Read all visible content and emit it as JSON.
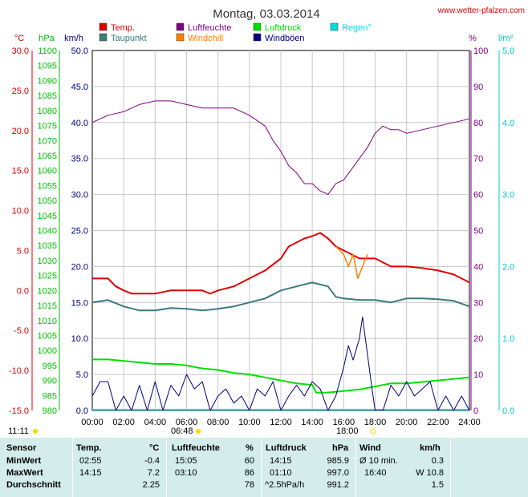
{
  "header": {
    "title": "Montag, 03.03.2014",
    "site": "www.wetter-pfalzen.com"
  },
  "legend": [
    {
      "label": "Temp.",
      "color": "#e00000"
    },
    {
      "label": "Taupunkt",
      "color": "#3a7b7b"
    },
    {
      "label": "Luftfeuchte",
      "color": "#800080"
    },
    {
      "label": "Windchill",
      "color": "#ff8000"
    },
    {
      "label": "Luftdruck",
      "color": "#00e000"
    },
    {
      "label": "Windböen",
      "color": "#000080"
    },
    {
      "label": "Regen°",
      "color": "#00e0e0"
    }
  ],
  "axes": {
    "temp": {
      "unit": "°C",
      "color": "#e00000",
      "ticks": [
        "30.0",
        "25.0",
        "20.0",
        "15.0",
        "10.0",
        "5.0",
        "0.0",
        "-5.0",
        "-10.0",
        "-15.0"
      ]
    },
    "pressure": {
      "unit": "hPa",
      "color": "#00c000",
      "ticks": [
        "1100",
        "1095",
        "1090",
        "1085",
        "1080",
        "1075",
        "1070",
        "1065",
        "1060",
        "1055",
        "1050",
        "1045",
        "1040",
        "1035",
        "1030",
        "1025",
        "1020",
        "1015",
        "1010",
        "1005",
        "1000",
        "995",
        "990",
        "985",
        "980"
      ]
    },
    "wind": {
      "unit": "km/h",
      "color": "#000080",
      "ticks": [
        "50.0",
        "45.0",
        "40.0",
        "35.0",
        "30.0",
        "25.0",
        "20.0",
        "15.0",
        "10.0",
        "5.0",
        "0.0"
      ]
    },
    "humidity": {
      "unit": "%",
      "color": "#800080",
      "ticks": [
        "100",
        "90",
        "80",
        "70",
        "60",
        "50",
        "40",
        "30",
        "20",
        "10",
        "0"
      ]
    },
    "rain": {
      "unit": "l/m²",
      "color": "#00c8c8",
      "ticks": [
        "5.0",
        "4.0",
        "3.0",
        "2.0",
        "1.0",
        "0.0"
      ]
    },
    "time": {
      "ticks": [
        "00:00",
        "02:00",
        "04:00",
        "06:00",
        "08:00",
        "10:00",
        "12:00",
        "14:00",
        "16:00",
        "18:00",
        "20:00",
        "22:00",
        "24:00"
      ]
    }
  },
  "sun": {
    "current": "11:11",
    "sunrise": "06:48",
    "sunset": "18:00"
  },
  "chart_data": {
    "type": "line",
    "x_unit": "hours",
    "xlim": [
      0,
      24
    ],
    "series": [
      {
        "name": "Temp.",
        "axis": "°C",
        "color": "#e00000",
        "x": [
          0,
          1,
          1.5,
          2,
          2.5,
          3,
          4,
          5,
          6,
          7,
          7.5,
          8,
          9,
          10,
          11,
          12,
          12.5,
          13,
          13.5,
          14,
          14.5,
          15,
          15.5,
          16,
          16.5,
          17,
          18,
          19,
          20,
          21,
          22,
          23,
          24
        ],
        "y": [
          1.5,
          1.5,
          0.5,
          0,
          -0.4,
          -0.4,
          -0.4,
          0,
          0,
          0,
          -0.4,
          0,
          0.5,
          1.5,
          2.5,
          4,
          5.5,
          6,
          6.5,
          6.8,
          7.2,
          6.5,
          5.5,
          5,
          4.5,
          4,
          4,
          3,
          3,
          2.8,
          2.5,
          2,
          1
        ]
      },
      {
        "name": "Taupunkt",
        "axis": "°C",
        "color": "#3a7b7b",
        "x": [
          0,
          1,
          2,
          3,
          4,
          5,
          6,
          7,
          8,
          9,
          10,
          11,
          12,
          13,
          14,
          15,
          15.5,
          16,
          17,
          18,
          19,
          20,
          21,
          22,
          23,
          24
        ],
        "y": [
          -1.5,
          -1.2,
          -2,
          -2.5,
          -2.5,
          -2.2,
          -2.3,
          -2.5,
          -2.3,
          -2,
          -1.5,
          -1,
          0,
          0.5,
          1,
          0.5,
          -0.8,
          -1,
          -1.2,
          -1.2,
          -1.5,
          -1,
          -1,
          -1.1,
          -1.3,
          -2
        ]
      },
      {
        "name": "Windchill",
        "axis": "°C",
        "color": "#ff8000",
        "x": [
          15.5,
          16,
          16.3,
          16.6,
          16.9,
          17.2,
          17.5
        ],
        "y": [
          5.5,
          4.5,
          3,
          4.5,
          1.5,
          3,
          4.5
        ]
      },
      {
        "name": "Luftfeuchte",
        "axis": "%",
        "color": "#800080",
        "x": [
          0,
          1,
          2,
          3,
          4,
          5,
          6,
          7,
          8,
          9,
          10,
          11,
          11.5,
          12,
          12.5,
          13,
          13.5,
          14,
          14.5,
          15,
          15.5,
          16,
          16.5,
          17,
          17.5,
          18,
          18.5,
          19,
          19.5,
          20,
          21,
          22,
          23,
          24
        ],
        "y": [
          80,
          82,
          83,
          85,
          86,
          86,
          85,
          84,
          84,
          84,
          82,
          79,
          75,
          72,
          68,
          66,
          63,
          63,
          61,
          60,
          63,
          64,
          67,
          70,
          73,
          77,
          79,
          78,
          78,
          77,
          78,
          79,
          80,
          81
        ]
      },
      {
        "name": "Luftdruck",
        "axis": "hPa",
        "color": "#00e000",
        "x": [
          0,
          1,
          2,
          3,
          4,
          5,
          6,
          7,
          8,
          9,
          10,
          11,
          12,
          13,
          14,
          14.25,
          15,
          16,
          17,
          18,
          19,
          20,
          21,
          22,
          23,
          24
        ],
        "y": [
          997,
          997,
          996.5,
          996,
          995.5,
          995.5,
          995,
          994,
          993.5,
          992.5,
          992,
          991,
          990,
          989,
          988.5,
          985.9,
          986,
          986.5,
          987,
          988,
          989,
          989,
          989.5,
          990,
          990.5,
          991
        ]
      },
      {
        "name": "Windböen",
        "axis": "km/h",
        "color": "#000080",
        "x": [
          0,
          0.5,
          1,
          1.5,
          2,
          2.5,
          3,
          3.5,
          4,
          4.5,
          5,
          5.5,
          6,
          6.5,
          7,
          7.5,
          8,
          8.5,
          9,
          9.5,
          10,
          10.5,
          11,
          11.5,
          12,
          12.5,
          13,
          13.5,
          14,
          14.5,
          15,
          15.5,
          16,
          16.3,
          16.6,
          17,
          17.2,
          17.5,
          17.8,
          18,
          18.5,
          19,
          19.5,
          20,
          20.5,
          21,
          21.5,
          22,
          22.5,
          23,
          23.5,
          24
        ],
        "y": [
          2,
          4,
          4,
          0,
          2,
          0,
          3.5,
          0,
          4,
          0,
          3.5,
          2,
          5,
          3,
          4,
          0,
          2,
          3,
          1,
          2,
          0,
          3,
          2,
          4,
          0,
          2,
          3.5,
          2,
          4,
          3,
          0,
          2,
          6,
          9,
          7,
          10,
          13,
          8,
          3,
          0,
          0,
          3.5,
          2,
          4,
          2,
          3,
          4,
          0,
          2,
          0,
          2,
          0
        ]
      }
    ]
  },
  "table": {
    "headers": [
      "Sensor",
      "Temp.",
      "°C",
      "Luftfeuchte",
      "%",
      "Luftdruck",
      "hPa",
      "Wind",
      "km/h"
    ],
    "rows": [
      {
        "label": "MinWert",
        "temp_time": "02:55",
        "temp_val": "-0.4",
        "hum_time": "15:05",
        "hum_val": "60",
        "pres_time": "14:15",
        "pres_val": "985.9",
        "wind_time": "Ø 10 min.",
        "wind_val": "0.3"
      },
      {
        "label": "MaxWert",
        "temp_time": "14:15",
        "temp_val": "7.2",
        "hum_time": "03:10",
        "hum_val": "86",
        "pres_time": "01:10",
        "pres_val": "997.0",
        "wind_time": "16:40",
        "wind_val": "W 10.8"
      },
      {
        "label": "Durchschnitt",
        "temp_time": "",
        "temp_val": "2.25",
        "hum_time": "",
        "hum_val": "78",
        "pres_time": "^2.5hPa/h",
        "pres_val": "991.2",
        "wind_time": "",
        "wind_val": "1.5"
      }
    ]
  }
}
